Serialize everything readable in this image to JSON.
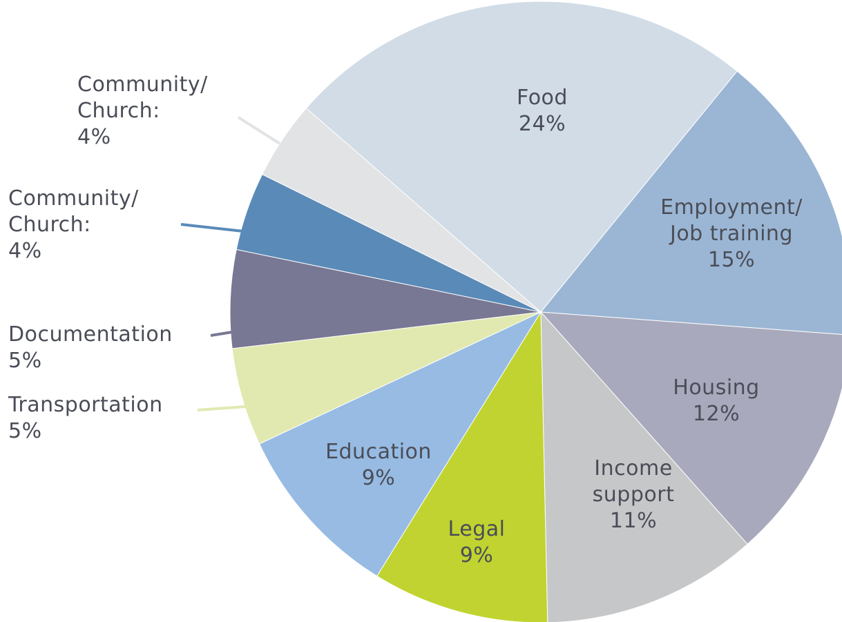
{
  "chart_data": {
    "type": "pie",
    "title": "",
    "slices": [
      {
        "label_lines": [
          "Food"
        ],
        "value": 24,
        "value_label": "24%",
        "color": "#d1dce6"
      },
      {
        "label_lines": [
          "Employment/",
          "Job training"
        ],
        "value": 15,
        "value_label": "15%",
        "color": "#9bb6d4"
      },
      {
        "label_lines": [
          "Housing"
        ],
        "value": 12,
        "value_label": "12%",
        "color": "#a9a9bd"
      },
      {
        "label_lines": [
          "Income",
          "support"
        ],
        "value": 11,
        "value_label": "11%",
        "color": "#c6c7c9"
      },
      {
        "label_lines": [
          "Legal"
        ],
        "value": 9,
        "value_label": "9%",
        "color": "#c0d330"
      },
      {
        "label_lines": [
          "Education"
        ],
        "value": 9,
        "value_label": "9%",
        "color": "#97bbe3"
      },
      {
        "label_lines": [
          "Transportation"
        ],
        "value": 5,
        "value_label": "5%",
        "color": "#e1e9b0"
      },
      {
        "label_lines": [
          "Documentation"
        ],
        "value": 5,
        "value_label": "5%",
        "color": "#787894"
      },
      {
        "label_lines": [
          "Community/",
          "Church:"
        ],
        "value": 4,
        "value_label": "4%",
        "color": "#5a8ab8"
      },
      {
        "label_lines": [
          "Community/",
          "Church:"
        ],
        "value": 4,
        "value_label": "4%",
        "color": "#e2e3e5"
      }
    ]
  }
}
